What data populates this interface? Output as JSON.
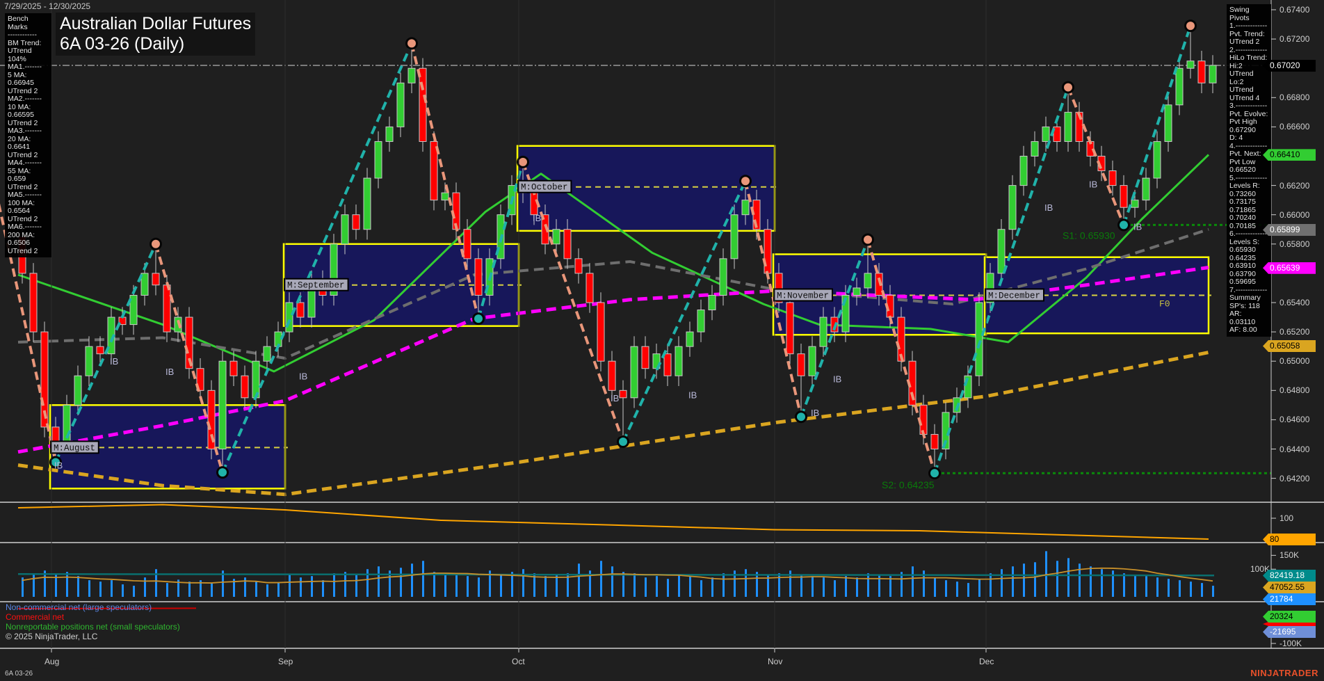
{
  "header": {
    "date_range": "7/29/2025 - 12/30/2025",
    "title_line1": "Australian Dollar Futures",
    "title_line2": "6A 03-26 (Daily)"
  },
  "bench_marks": [
    "Bench Marks",
    "------------",
    "BM Trend:",
    "UTrend 104%",
    "MA1.-------",
    "5 MA:",
    "0.66945",
    "UTrend 2",
    "MA2.-------",
    "10 MA:",
    "0.66595",
    "UTrend 2",
    "MA3.-------",
    "20 MA:",
    "0.6641",
    "UTrend 2",
    "MA4.-------",
    "55 MA:",
    "0.659",
    "UTrend 2",
    "MA5.-------",
    "100 MA:",
    "0.6564",
    "UTrend 2",
    "MA6.-------",
    "200 MA:",
    "0.6506",
    "UTrend 2"
  ],
  "swing_pivots": [
    "Swing Pivots",
    "1.-------------",
    "Pvt. Trend:",
    "UTrend 2",
    "2.-------------",
    "HiLo Trend:",
    "Hi:2 UTrend",
    "Lo:2 UTrend",
    "UTrend 4",
    "3.-------------",
    "Pvt. Evolve:",
    "Pvt High",
    "0.67290",
    "D: 4",
    "4.-------------",
    "Pvt. Next:",
    "Pvt Low",
    "0.66520",
    "5.-------------",
    "Levels R:",
    "0.73260",
    "0.73175",
    "0.71865",
    "0.70240",
    "0.70185",
    "6.-------------",
    "Levels S:",
    "0.65930",
    "0.64235",
    "0.63910",
    "0.63790",
    "0.59695",
    "7.-------------",
    "Summary",
    "SP's: 118",
    "AR: 0.03110",
    "AF: 8.00"
  ],
  "price_axis": {
    "ticks": [
      "0.67400",
      "0.67200",
      "0.66800",
      "0.66600",
      "0.66200",
      "0.66000",
      "0.65800",
      "0.65400",
      "0.65200",
      "0.65000",
      "0.64800",
      "0.64600",
      "0.64400",
      "0.64200"
    ],
    "markers": [
      {
        "label": "0.67020",
        "bg": "#000000",
        "fg": "#ffffff"
      },
      {
        "label": "0.66410",
        "bg": "#32cd32",
        "fg": "#000000"
      },
      {
        "label": "0.65899",
        "bg": "#707070",
        "fg": "#ffffff"
      },
      {
        "label": "0.65639",
        "bg": "#ff00ff",
        "fg": "#ffffff"
      },
      {
        "label": "0.65058",
        "bg": "#daa520",
        "fg": "#000000"
      }
    ]
  },
  "indicator_axis": {
    "ticks": [
      "100"
    ],
    "marker": {
      "label": "80",
      "bg": "#ffa500",
      "fg": "#000000"
    }
  },
  "volume_axis": {
    "ticks": [
      "150K",
      "100K"
    ],
    "markers": [
      {
        "label": "82419.18",
        "bg": "#008b8b",
        "fg": "#ffffff"
      },
      {
        "label": "47052.55",
        "bg": "#daa520",
        "fg": "#000000"
      },
      {
        "label": "21784",
        "bg": "#1e90ff",
        "fg": "#ffffff"
      }
    ]
  },
  "cot_axis": {
    "ticks": [
      "-100K"
    ],
    "markers": [
      {
        "label": "20324",
        "bg": "#32cd32",
        "fg": "#000000"
      },
      {
        "label": "-21695",
        "bg": "#6f8fd8",
        "fg": "#ffffff"
      }
    ]
  },
  "cot_legend": {
    "noncommercial": "Non-commercial net (large speculators)",
    "commercial": "Commercial net",
    "nonreportable": "Nonreportable positions net (small speculators)"
  },
  "x_axis": {
    "ticks": [
      {
        "date": "8/1",
        "label": "Aug"
      },
      {
        "date": "9/2",
        "label": "Sep"
      },
      {
        "date": "10/1",
        "label": "Oct"
      },
      {
        "date": "11/3",
        "label": "Nov"
      },
      {
        "date": "12/1",
        "label": "Dec"
      }
    ]
  },
  "footer": {
    "copyright": "© 2025 NinjaTrader, LLC",
    "symbol": "6A 03-26",
    "logo": "NINJATRADER"
  },
  "chart_data": {
    "type": "candlestick",
    "dates": [
      "7/29",
      "7/30",
      "7/31",
      "8/1",
      "8/4",
      "8/5",
      "8/6",
      "8/7",
      "8/8",
      "8/11",
      "8/12",
      "8/13",
      "8/14",
      "8/15",
      "8/18",
      "8/19",
      "8/20",
      "8/21",
      "8/22",
      "8/25",
      "8/26",
      "8/27",
      "8/28",
      "8/29",
      "9/2",
      "9/3",
      "9/4",
      "9/5",
      "9/8",
      "9/9",
      "9/10",
      "9/11",
      "9/12",
      "9/15",
      "9/16",
      "9/17",
      "9/18",
      "9/19",
      "9/22",
      "9/23",
      "9/24",
      "9/25",
      "9/26",
      "9/29",
      "9/30",
      "10/1",
      "10/2",
      "10/3",
      "10/6",
      "10/7",
      "10/8",
      "10/9",
      "10/10",
      "10/13",
      "10/14",
      "10/15",
      "10/16",
      "10/17",
      "10/20",
      "10/21",
      "10/22",
      "10/23",
      "10/24",
      "10/27",
      "10/28",
      "10/29",
      "10/30",
      "10/31",
      "11/3",
      "11/4",
      "11/5",
      "11/6",
      "11/7",
      "11/10",
      "11/11",
      "11/12",
      "11/13",
      "11/14",
      "11/17",
      "11/18",
      "11/19",
      "11/20",
      "11/21",
      "11/24",
      "11/25",
      "11/26",
      "11/28",
      "12/1",
      "12/2",
      "12/3",
      "12/4",
      "12/5",
      "12/8",
      "12/9",
      "12/10",
      "12/11",
      "12/12",
      "12/15",
      "12/16",
      "12/17",
      "12/18",
      "12/19",
      "12/22",
      "12/23",
      "12/24",
      "12/26",
      "12/29",
      "12/30"
    ],
    "close": [
      0.656,
      0.652,
      0.6455,
      0.6445,
      0.647,
      0.649,
      0.651,
      0.6505,
      0.653,
      0.6525,
      0.6545,
      0.656,
      0.6552,
      0.652,
      0.653,
      0.6495,
      0.648,
      0.644,
      0.65,
      0.649,
      0.6475,
      0.65,
      0.651,
      0.652,
      0.654,
      0.653,
      0.6555,
      0.6545,
      0.658,
      0.66,
      0.659,
      0.6625,
      0.665,
      0.666,
      0.669,
      0.67,
      0.665,
      0.661,
      0.6615,
      0.659,
      0.657,
      0.6545,
      0.657,
      0.66,
      0.662,
      0.6615,
      0.66,
      0.658,
      0.659,
      0.657,
      0.656,
      0.654,
      0.65,
      0.648,
      0.6475,
      0.651,
      0.6495,
      0.6505,
      0.649,
      0.651,
      0.652,
      0.6535,
      0.6545,
      0.657,
      0.66,
      0.661,
      0.659,
      0.656,
      0.654,
      0.6505,
      0.649,
      0.651,
      0.653,
      0.652,
      0.6545,
      0.655,
      0.656,
      0.6545,
      0.653,
      0.65,
      0.647,
      0.645,
      0.644,
      0.6465,
      0.6475,
      0.649,
      0.654,
      0.656,
      0.659,
      0.662,
      0.664,
      0.665,
      0.666,
      0.665,
      0.667,
      0.665,
      0.664,
      0.663,
      0.662,
      0.6605,
      0.661,
      0.6625,
      0.665,
      0.6675,
      0.67,
      0.6705,
      0.669,
      0.6702
    ],
    "swing_points": [
      {
        "date": "8/1",
        "type": "low",
        "price": 0.6431
      },
      {
        "date": "8/14",
        "type": "high",
        "price": 0.658
      },
      {
        "date": "8/22",
        "type": "low",
        "price": 0.6424
      },
      {
        "date": "9/17",
        "type": "high",
        "price": 0.6717
      },
      {
        "date": "9/25",
        "type": "low",
        "price": 0.6529
      },
      {
        "date": "10/1",
        "type": "high",
        "price": 0.6636
      },
      {
        "date": "10/14",
        "type": "low",
        "price": 0.6445
      },
      {
        "date": "10/29",
        "type": "high",
        "price": 0.6623
      },
      {
        "date": "11/5",
        "type": "low",
        "price": 0.6462
      },
      {
        "date": "11/13",
        "type": "high",
        "price": 0.6583
      },
      {
        "date": "11/21",
        "type": "low",
        "price": 0.64235
      },
      {
        "date": "12/10",
        "type": "high",
        "price": 0.6687
      },
      {
        "date": "12/17",
        "type": "low",
        "price": 0.6593
      },
      {
        "date": "12/26",
        "type": "high",
        "price": 0.6729
      }
    ],
    "moving_averages": [
      {
        "name": "20 MA",
        "color": "#32cd32",
        "style": "solid",
        "points": [
          [
            "7/29",
            0.6559
          ],
          [
            "8/15",
            0.6525
          ],
          [
            "8/29",
            0.6493
          ],
          [
            "9/12",
            0.6528
          ],
          [
            "9/26",
            0.6602
          ],
          [
            "10/3",
            0.6628
          ],
          [
            "10/17",
            0.6574
          ],
          [
            "10/31",
            0.6539
          ],
          [
            "11/7",
            0.6525
          ],
          [
            "11/21",
            0.6522
          ],
          [
            "12/3",
            0.6513
          ],
          [
            "12/12",
            0.6557
          ],
          [
            "12/19",
            0.6597
          ],
          [
            "12/30",
            0.6641
          ]
        ]
      },
      {
        "name": "55 MA",
        "color": "#6e6e6e",
        "style": "dashed",
        "points": [
          [
            "7/29",
            0.6513
          ],
          [
            "8/15",
            0.6516
          ],
          [
            "9/2",
            0.6502
          ],
          [
            "9/25",
            0.6559
          ],
          [
            "10/15",
            0.6568
          ],
          [
            "11/3",
            0.6549
          ],
          [
            "11/25",
            0.6539
          ],
          [
            "12/12",
            0.6563
          ],
          [
            "12/30",
            0.659
          ]
        ]
      },
      {
        "name": "100 MA",
        "color": "#ff00ff",
        "style": "dashed",
        "points": [
          [
            "7/29",
            0.6438
          ],
          [
            "8/15",
            0.6456
          ],
          [
            "9/2",
            0.6473
          ],
          [
            "9/25",
            0.6529
          ],
          [
            "10/15",
            0.6542
          ],
          [
            "11/3",
            0.6548
          ],
          [
            "11/28",
            0.6542
          ],
          [
            "12/12",
            0.6552
          ],
          [
            "12/30",
            0.6564
          ]
        ]
      },
      {
        "name": "200 MA",
        "color": "#daa520",
        "style": "dashed",
        "points": [
          [
            "7/29",
            0.6429
          ],
          [
            "8/15",
            0.6415
          ],
          [
            "9/2",
            0.6409
          ],
          [
            "10/1",
            0.6431
          ],
          [
            "11/3",
            0.6458
          ],
          [
            "12/1",
            0.6476
          ],
          [
            "12/30",
            0.6506
          ]
        ]
      }
    ],
    "monthly_boxes": [
      {
        "label": "M:August",
        "start": "8/1",
        "end": "8/29",
        "high": 0.647,
        "low": 0.6413,
        "mid": 0.6441
      },
      {
        "label": "M:September",
        "start": "9/2",
        "end": "9/30",
        "high": 0.658,
        "low": 0.6524,
        "mid": 0.6552
      },
      {
        "label": "M:October",
        "start": "10/1",
        "end": "10/31",
        "high": 0.6647,
        "low": 0.6589,
        "mid": 0.6619
      },
      {
        "label": "M:November",
        "start": "11/3",
        "end": "11/28",
        "high": 0.6573,
        "low": 0.6518,
        "mid": 0.6545
      },
      {
        "label": "M:December",
        "start": "12/1",
        "end": "12/29",
        "high": 0.6571,
        "low": 0.6519,
        "mid": 0.6545,
        "tag": "F0"
      }
    ],
    "support_levels": [
      {
        "label": "S1: 0.65930",
        "price": 0.6593,
        "start": "12/17"
      },
      {
        "label": "S2: 0.64235",
        "price": 0.64235,
        "start": "11/21"
      }
    ],
    "last_price": 0.6702,
    "ib_labels": [
      {
        "text": "IB",
        "date": "8/1",
        "price": 0.6429
      },
      {
        "text": "IB",
        "date": "8/8",
        "price": 0.65
      },
      {
        "text": "IB",
        "date": "8/15",
        "price": 0.6493
      },
      {
        "text": "IB",
        "date": "9/3",
        "price": 0.649
      },
      {
        "text": "IB",
        "date": "10/2",
        "price": 0.6598
      },
      {
        "text": "IB",
        "date": "10/13",
        "price": 0.6475
      },
      {
        "text": "IB",
        "date": "10/22",
        "price": 0.6477
      },
      {
        "text": "IB",
        "date": "11/6",
        "price": 0.6465
      },
      {
        "text": "IB",
        "date": "11/10",
        "price": 0.6488
      },
      {
        "text": "IB",
        "date": "12/8",
        "price": 0.6605
      },
      {
        "text": "IB",
        "date": "12/12",
        "price": 0.6621
      },
      {
        "text": "IB",
        "date": "12/18",
        "price": 0.6592
      }
    ],
    "indicator": {
      "color": "#ffa500",
      "points": [
        [
          "7/29",
          110
        ],
        [
          "8/15",
          113
        ],
        [
          "9/2",
          108
        ],
        [
          "9/22",
          98
        ],
        [
          "10/15",
          93
        ],
        [
          "11/3",
          89
        ],
        [
          "11/20",
          88
        ],
        [
          "12/10",
          84
        ],
        [
          "12/30",
          80
        ]
      ]
    },
    "volume": [
      70000,
      85000,
      95000,
      80000,
      90000,
      75000,
      60000,
      55000,
      60000,
      45000,
      40000,
      70000,
      100000,
      50000,
      62000,
      55000,
      60000,
      48000,
      95000,
      65000,
      70000,
      55000,
      45000,
      50000,
      80000,
      70000,
      75000,
      60000,
      85000,
      90000,
      80000,
      100000,
      110000,
      95000,
      105000,
      120000,
      130000,
      90000,
      85000,
      80000,
      75000,
      70000,
      95000,
      80000,
      90000,
      100000,
      85000,
      75000,
      80000,
      85000,
      120000,
      95000,
      130000,
      110000,
      90000,
      85000,
      70000,
      75000,
      65000,
      80000,
      75000,
      60000,
      70000,
      85000,
      95000,
      100000,
      90000,
      80000,
      85000,
      95000,
      80000,
      75000,
      70000,
      60000,
      75000,
      70000,
      85000,
      80000,
      75000,
      90000,
      110000,
      95000,
      70000,
      60000,
      55000,
      50000,
      65000,
      85000,
      100000,
      110000,
      120000,
      125000,
      165000,
      130000,
      140000,
      120000,
      110000,
      100000,
      95000,
      85000,
      80000,
      75000,
      70000,
      65000,
      60000,
      55000,
      50000,
      40000
    ],
    "open_interest_level": 82419.18,
    "cot": [
      {
        "name": "Commercial net",
        "color": "#cc0000",
        "points": [
          [
            "7/29",
            72000
          ],
          [
            "8/20",
            74000
          ],
          [
            "9/20",
            80000
          ],
          [
            "10/10",
            86000
          ],
          [
            "10/20",
            86000
          ],
          [
            "11/1",
            74000
          ],
          [
            "11/20",
            72000
          ],
          [
            "12/10",
            72000
          ],
          [
            "12/16",
            4000
          ],
          [
            "12/30",
            4000
          ]
        ]
      },
      {
        "name": "Non-commercial net (large speculators)",
        "color": "#6f8fd8",
        "points": [
          [
            "7/29",
            -73000
          ],
          [
            "9/20",
            -76000
          ],
          [
            "10/10",
            -80000
          ],
          [
            "10/20",
            -80000
          ],
          [
            "11/1",
            -72000
          ],
          [
            "11/20",
            -70000
          ],
          [
            "12/10",
            -70000
          ],
          [
            "12/16",
            -21695
          ],
          [
            "12/30",
            -21695
          ]
        ]
      },
      {
        "name": "Nonreportable positions net (small speculators)",
        "color": "#2e8b2e",
        "points": [
          [
            "7/29",
            4000
          ],
          [
            "9/20",
            4000
          ],
          [
            "10/10",
            2000
          ],
          [
            "10/20",
            2000
          ],
          [
            "11/1",
            4000
          ],
          [
            "11/20",
            6000
          ],
          [
            "12/10",
            6000
          ],
          [
            "12/16",
            20324
          ],
          [
            "12/30",
            20324
          ]
        ]
      }
    ]
  }
}
